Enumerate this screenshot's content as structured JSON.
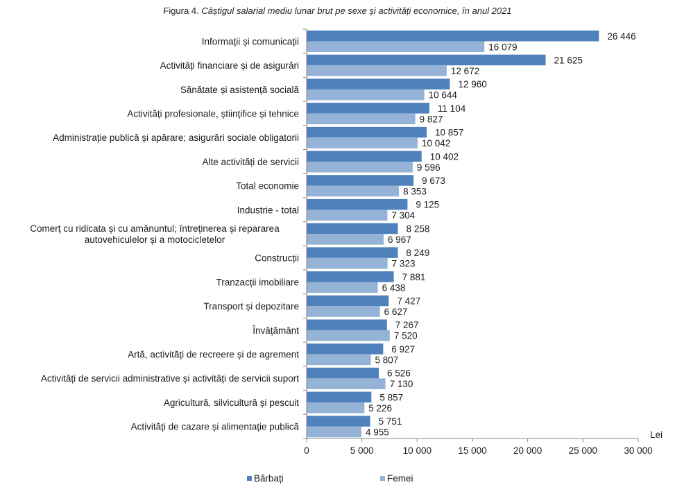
{
  "chart_data": {
    "type": "bar",
    "orientation": "horizontal",
    "title_prefix": "Figura 4.",
    "title": "Câștigul salarial mediu lunar brut pe sexe și activități economice, în anul 2021",
    "xlabel": "Lei",
    "ylabel": "",
    "xlim": [
      0,
      30000
    ],
    "xticks": [
      0,
      5000,
      10000,
      15000,
      20000,
      25000,
      30000
    ],
    "xtick_labels": [
      "0",
      "5 000",
      "10 000",
      "15 000",
      "20 000",
      "25 000",
      "30 000"
    ],
    "grid": false,
    "legend_position": "bottom",
    "categories": [
      [
        "Informații și comunicații"
      ],
      [
        "Activități financiare și de asigurări"
      ],
      [
        "Sănătate și asistență socială"
      ],
      [
        "Activități profesionale, științifice și tehnice"
      ],
      [
        "Administrație publică și apărare; asigurări sociale obligatorii"
      ],
      [
        "Alte activități de servicii"
      ],
      [
        "Total economie"
      ],
      [
        "Industrie - total"
      ],
      [
        "Comerț cu ridicata și cu amănuntul; întreținerea și repararea",
        "autovehiculelor și a motocicletelor"
      ],
      [
        "Construcții"
      ],
      [
        "Tranzacții imobiliare"
      ],
      [
        "Transport și depozitare"
      ],
      [
        "Învățământ"
      ],
      [
        "Artă, activități de recreere și de agrement"
      ],
      [
        "Activități de servicii administrative și activități de servicii suport"
      ],
      [
        "Agricultură, silvicultură și pescuit"
      ],
      [
        "Activități de cazare și alimentație publică"
      ]
    ],
    "series": [
      {
        "name": "Bărbați",
        "color": "#4f81bd",
        "values": [
          26446,
          21625,
          12960,
          11104,
          10857,
          10402,
          9673,
          9125,
          8258,
          8249,
          7881,
          7427,
          7267,
          6927,
          6526,
          5857,
          5751
        ],
        "labels": [
          "26 446",
          "21 625",
          "12 960",
          "11 104",
          "10 857",
          "10 402",
          "9 673",
          "9 125",
          "8 258",
          "8 249",
          "7 881",
          "7 427",
          "7 267",
          "6 927",
          "6 526",
          "5 857",
          "5 751"
        ]
      },
      {
        "name": "Femei",
        "color": "#95b3d7",
        "values": [
          16079,
          12672,
          10644,
          9827,
          10042,
          9596,
          8353,
          7304,
          6967,
          7323,
          6438,
          6627,
          7520,
          5807,
          7130,
          5226,
          4955
        ],
        "labels": [
          "16 079",
          "12 672",
          "10 644",
          "9 827",
          "10 042",
          "9 596",
          "8 353",
          "7 304",
          "6 967",
          "7 323",
          "6 438",
          "6 627",
          "7 520",
          "5 807",
          "7 130",
          "5 226",
          "4 955"
        ]
      }
    ]
  }
}
